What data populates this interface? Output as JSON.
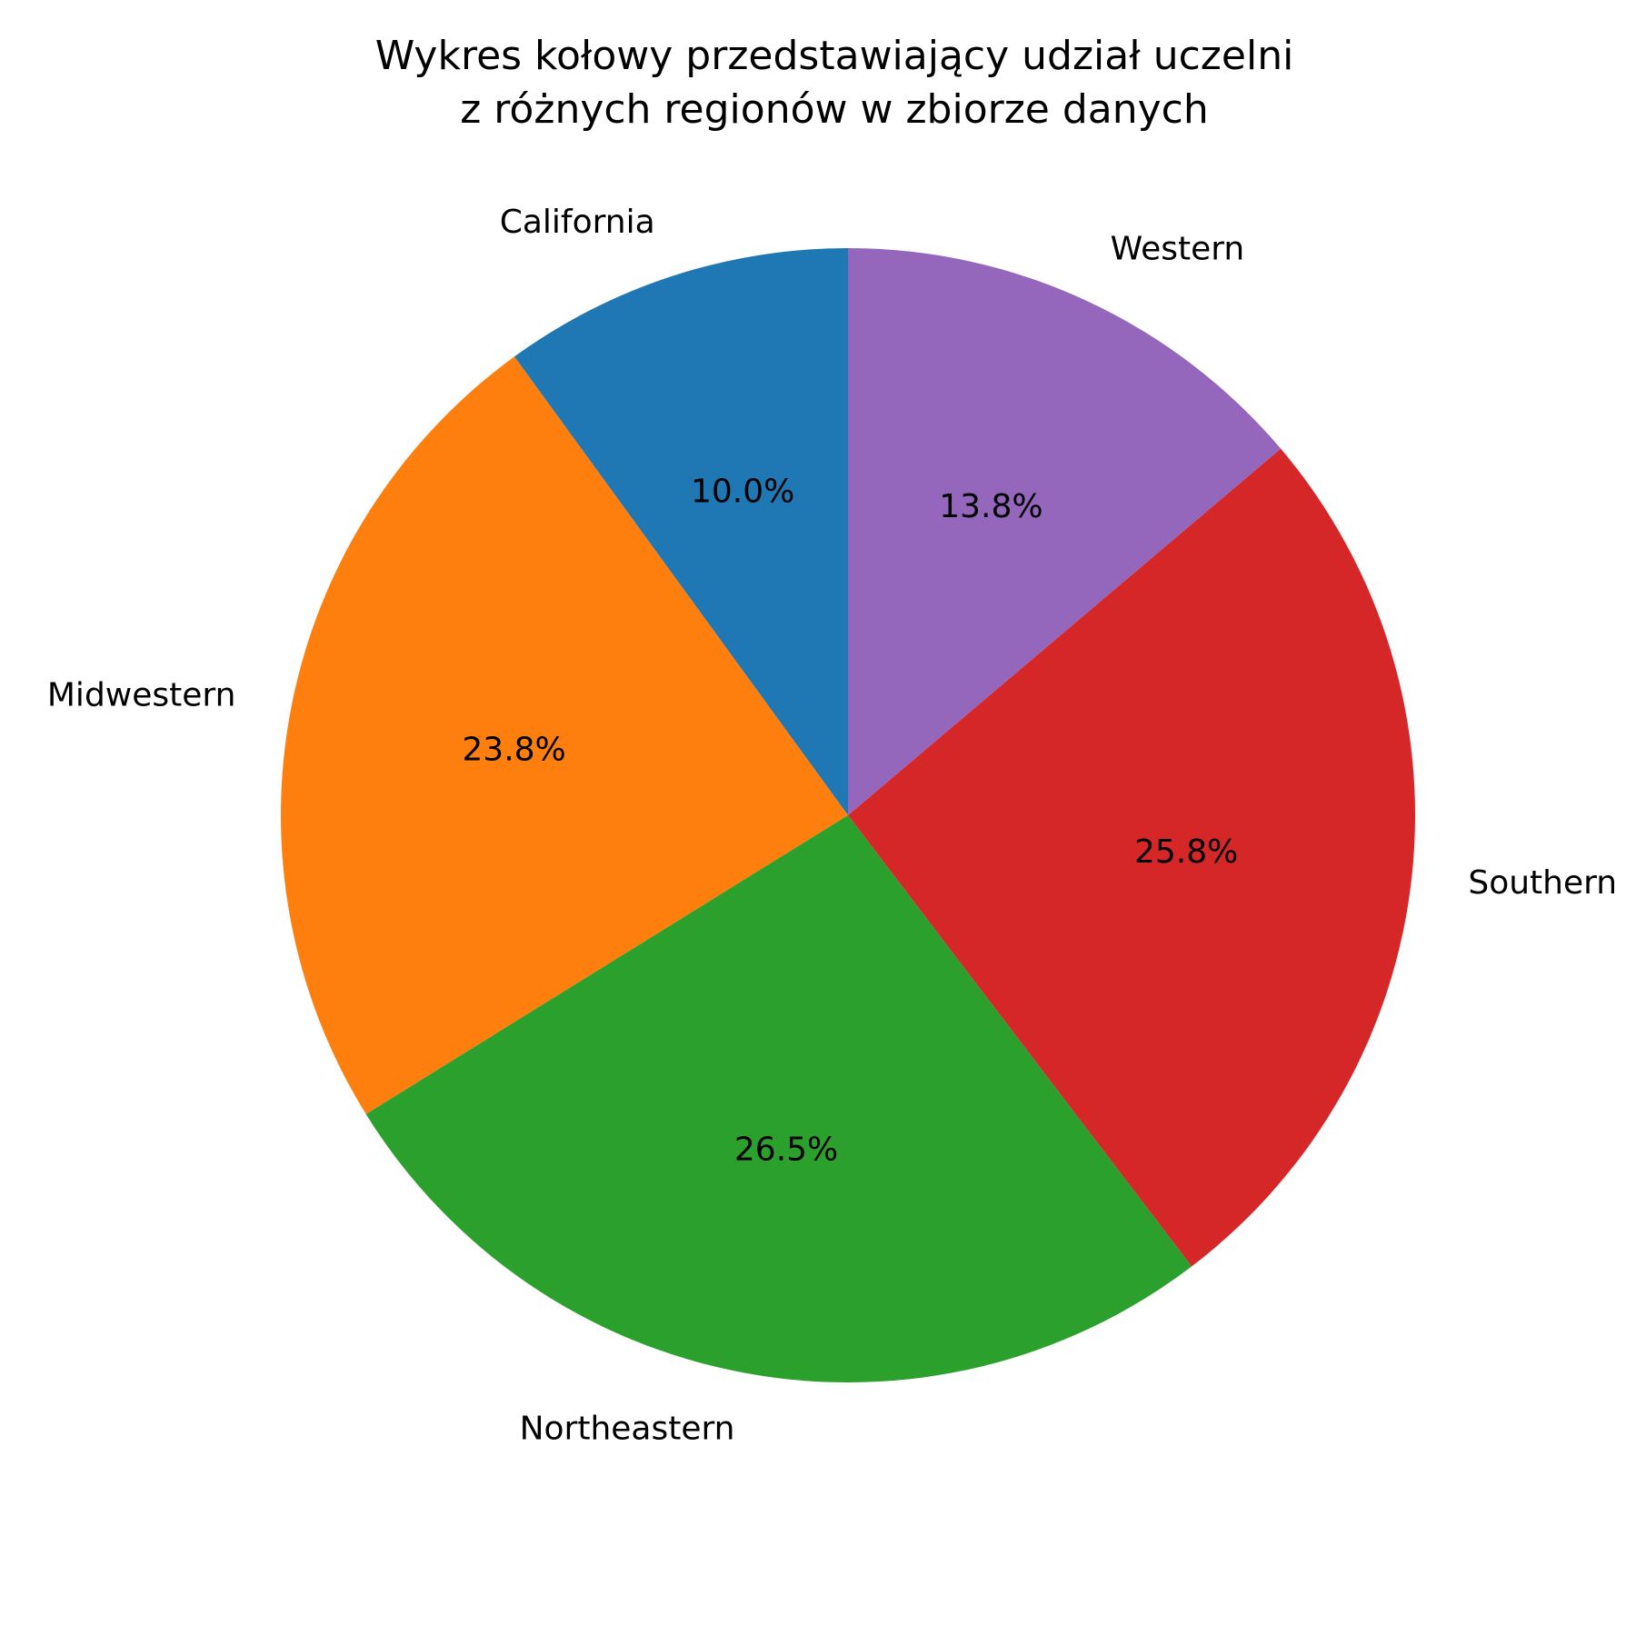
{
  "chart_data": {
    "type": "pie",
    "title": [
      "Wykres kołowy przedstawiający udział uczelni",
      "z różnych regionów w zbiorze danych"
    ],
    "start_angle_deg": 90,
    "direction": "counterclockwise",
    "slices": [
      {
        "label": "California",
        "value": 10.0,
        "pct_label": "10.0%",
        "color": "#1f77b4"
      },
      {
        "label": "Midwestern",
        "value": 23.8,
        "pct_label": "23.8%",
        "color": "#ff7f0e"
      },
      {
        "label": "Northeastern",
        "value": 26.5,
        "pct_label": "26.5%",
        "color": "#2ca02c"
      },
      {
        "label": "Southern",
        "value": 25.8,
        "pct_label": "25.8%",
        "color": "#d62728"
      },
      {
        "label": "Western",
        "value": 13.8,
        "pct_label": "13.8%",
        "color": "#9467bd"
      }
    ]
  }
}
